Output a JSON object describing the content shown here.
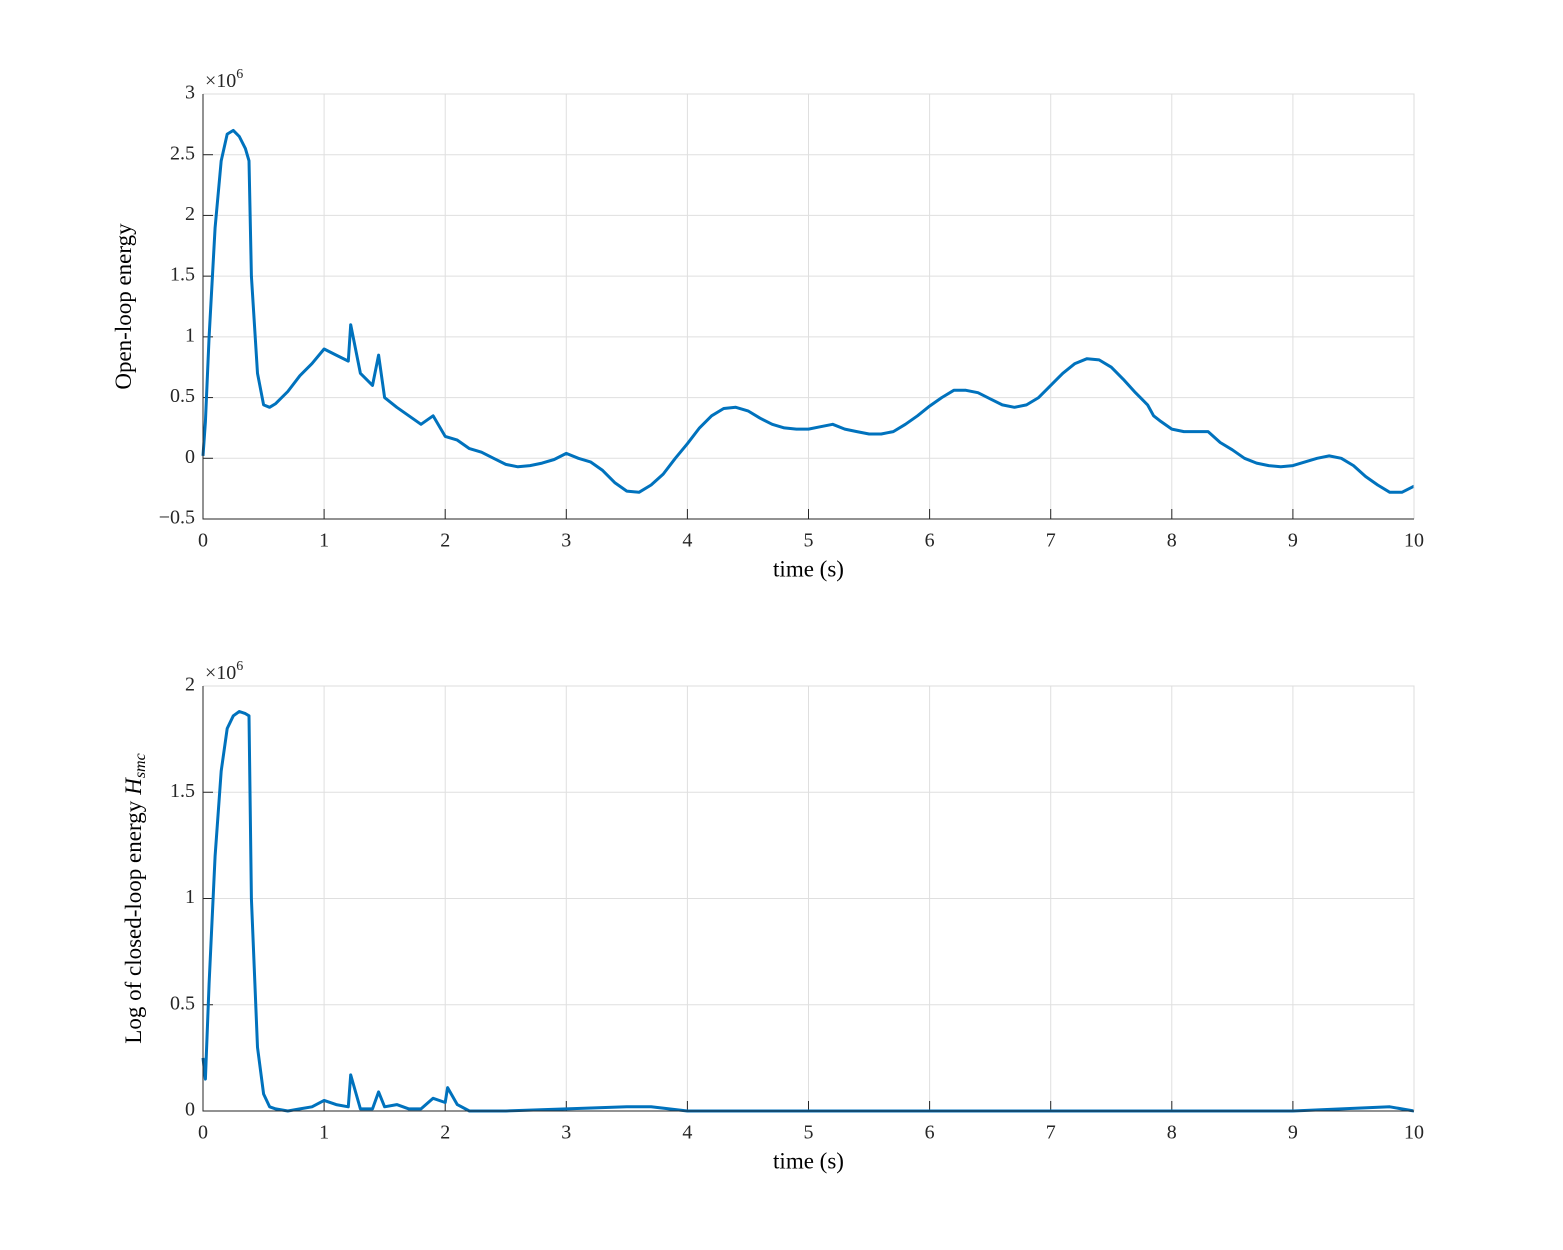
{
  "chart_data": [
    {
      "type": "line",
      "ylabel": "Open-loop energy",
      "xlabel": "time (s)",
      "y_multiplier_base": "×10",
      "y_multiplier_power": "6",
      "x": [
        0,
        0.02,
        0.05,
        0.1,
        0.15,
        0.2,
        0.25,
        0.3,
        0.35,
        0.38,
        0.4,
        0.45,
        0.5,
        0.55,
        0.6,
        0.7,
        0.8,
        0.9,
        1.0,
        1.1,
        1.2,
        1.22,
        1.3,
        1.4,
        1.45,
        1.5,
        1.6,
        1.7,
        1.8,
        1.9,
        2.0,
        2.1,
        2.2,
        2.3,
        2.4,
        2.5,
        2.6,
        2.7,
        2.8,
        2.9,
        3.0,
        3.1,
        3.2,
        3.3,
        3.4,
        3.5,
        3.6,
        3.7,
        3.8,
        3.9,
        4.0,
        4.1,
        4.2,
        4.3,
        4.4,
        4.5,
        4.6,
        4.7,
        4.8,
        4.9,
        5.0,
        5.1,
        5.2,
        5.3,
        5.4,
        5.5,
        5.6,
        5.7,
        5.8,
        5.9,
        6.0,
        6.1,
        6.2,
        6.3,
        6.4,
        6.5,
        6.6,
        6.7,
        6.8,
        6.9,
        7.0,
        7.1,
        7.2,
        7.3,
        7.4,
        7.5,
        7.6,
        7.7,
        7.8,
        7.85,
        7.9,
        8.0,
        8.1,
        8.2,
        8.3,
        8.4,
        8.5,
        8.6,
        8.7,
        8.8,
        8.9,
        9.0,
        9.1,
        9.2,
        9.3,
        9.4,
        9.5,
        9.6,
        9.7,
        9.8,
        9.9,
        10.0
      ],
      "values": [
        0.02,
        0.3,
        1.0,
        1.9,
        2.45,
        2.67,
        2.7,
        2.65,
        2.55,
        2.45,
        1.5,
        0.7,
        0.44,
        0.42,
        0.45,
        0.55,
        0.68,
        0.78,
        0.9,
        0.85,
        0.8,
        1.1,
        0.7,
        0.6,
        0.85,
        0.5,
        0.42,
        0.35,
        0.28,
        0.35,
        0.18,
        0.15,
        0.08,
        0.05,
        0.0,
        -0.05,
        -0.07,
        -0.06,
        -0.04,
        -0.01,
        0.04,
        0.0,
        -0.03,
        -0.1,
        -0.2,
        -0.27,
        -0.28,
        -0.22,
        -0.13,
        0.0,
        0.12,
        0.25,
        0.35,
        0.41,
        0.42,
        0.39,
        0.33,
        0.28,
        0.25,
        0.24,
        0.24,
        0.26,
        0.28,
        0.24,
        0.22,
        0.2,
        0.2,
        0.22,
        0.28,
        0.35,
        0.43,
        0.5,
        0.56,
        0.56,
        0.54,
        0.49,
        0.44,
        0.42,
        0.44,
        0.5,
        0.6,
        0.7,
        0.78,
        0.82,
        0.81,
        0.75,
        0.65,
        0.54,
        0.44,
        0.35,
        0.31,
        0.24,
        0.22,
        0.22,
        0.22,
        0.13,
        0.07,
        0.0,
        -0.04,
        -0.06,
        -0.07,
        -0.06,
        -0.03,
        0.0,
        0.02,
        0.0,
        -0.06,
        -0.15,
        -0.22,
        -0.28,
        -0.28,
        -0.23
      ],
      "color": "#0072bd",
      "xlim": [
        0,
        10
      ],
      "xticks": [
        0,
        1,
        2,
        3,
        4,
        5,
        6,
        7,
        8,
        9,
        10
      ],
      "ylim": [
        -0.5,
        3
      ],
      "yticks": [
        {
          "value": -0.5,
          "label": "−0.5"
        },
        0,
        0.5,
        1,
        1.5,
        2,
        2.5,
        3
      ],
      "grid": true
    },
    {
      "type": "line",
      "ylabel": "Log of closed-loop energy",
      "ylabel_symbol": "H",
      "ylabel_subscript": "smc",
      "xlabel": "time (s)",
      "y_multiplier_base": "×10",
      "y_multiplier_power": "6",
      "x": [
        0,
        0.02,
        0.05,
        0.1,
        0.15,
        0.2,
        0.25,
        0.3,
        0.35,
        0.38,
        0.4,
        0.45,
        0.5,
        0.55,
        0.6,
        0.7,
        0.8,
        0.9,
        1.0,
        1.1,
        1.2,
        1.22,
        1.3,
        1.4,
        1.45,
        1.5,
        1.6,
        1.7,
        1.8,
        1.9,
        2.0,
        2.02,
        2.1,
        2.2,
        2.5,
        3.0,
        3.5,
        3.7,
        4.0,
        5.0,
        6.0,
        7.0,
        8.0,
        9.0,
        9.8,
        10.0
      ],
      "values": [
        0.25,
        0.15,
        0.6,
        1.2,
        1.6,
        1.8,
        1.86,
        1.88,
        1.87,
        1.86,
        1.0,
        0.3,
        0.08,
        0.02,
        0.01,
        0.0,
        0.01,
        0.02,
        0.05,
        0.03,
        0.02,
        0.17,
        0.01,
        0.01,
        0.09,
        0.02,
        0.03,
        0.01,
        0.01,
        0.06,
        0.04,
        0.11,
        0.03,
        0.0,
        0.0,
        0.01,
        0.02,
        0.02,
        0.0,
        0.0,
        0.0,
        0.0,
        0.0,
        0.0,
        0.02,
        0.0
      ],
      "color": "#0072bd",
      "xlim": [
        0,
        10
      ],
      "xticks": [
        0,
        1,
        2,
        3,
        4,
        5,
        6,
        7,
        8,
        9,
        10
      ],
      "ylim": [
        0,
        2
      ],
      "yticks": [
        0,
        0.5,
        1,
        1.5,
        2
      ],
      "grid": true
    }
  ]
}
